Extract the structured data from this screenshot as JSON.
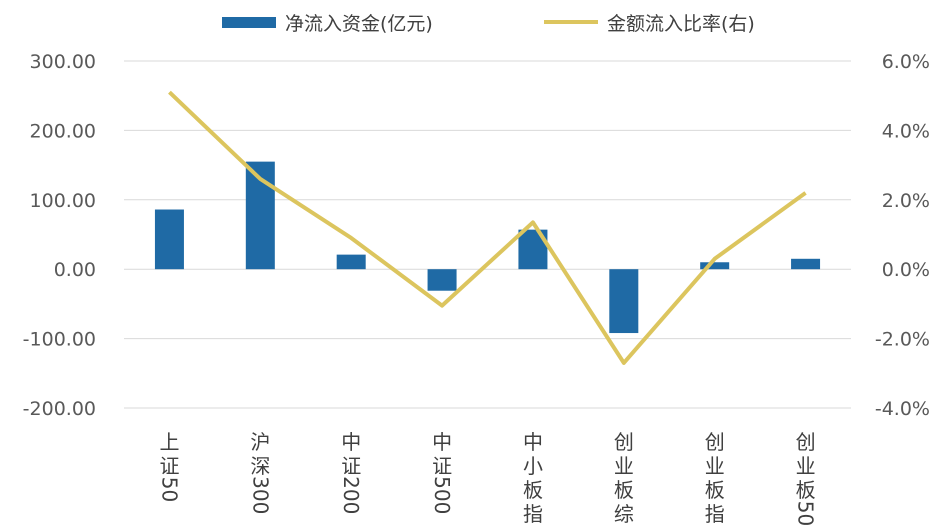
{
  "chart_data": {
    "type": "bar+line",
    "title": "",
    "categories": [
      "上证50",
      "沪深300",
      "中证200",
      "中证500",
      "中小板指",
      "创业板综",
      "创业板指",
      "创业板50"
    ],
    "category_lines": [
      [
        "上",
        "证",
        "50"
      ],
      [
        "沪",
        "深",
        "300"
      ],
      [
        "中",
        "证",
        "200"
      ],
      [
        "中",
        "证",
        "500"
      ],
      [
        "中",
        "小",
        "板",
        "指"
      ],
      [
        "创",
        "业",
        "板",
        "综"
      ],
      [
        "创",
        "业",
        "板",
        "指"
      ],
      [
        "创",
        "业",
        "板",
        "50"
      ]
    ],
    "series": [
      {
        "name": "净流入资金(亿元)",
        "type": "bar",
        "axis": "left",
        "color": "#1f6aa5",
        "values": [
          86,
          155,
          21,
          -31,
          57,
          -92,
          10,
          15
        ]
      },
      {
        "name": "金额流入比率(右)",
        "type": "line",
        "axis": "right",
        "color": "#dcc55e",
        "values": [
          5.1,
          2.6,
          0.9,
          -1.05,
          1.35,
          -2.7,
          0.3,
          2.2
        ]
      }
    ],
    "left_axis": {
      "min": -200,
      "max": 300,
      "step": 100,
      "tick_labels": [
        "-200.00",
        "-100.00",
        "0.00",
        "100.00",
        "200.00",
        "300.00"
      ]
    },
    "right_axis": {
      "min": -4,
      "max": 6,
      "step": 2,
      "tick_labels": [
        "-4.0%",
        "-2.0%",
        "0.0%",
        "2.0%",
        "4.0%",
        "6.0%"
      ]
    },
    "gridlines": true,
    "legend_position": "top"
  }
}
